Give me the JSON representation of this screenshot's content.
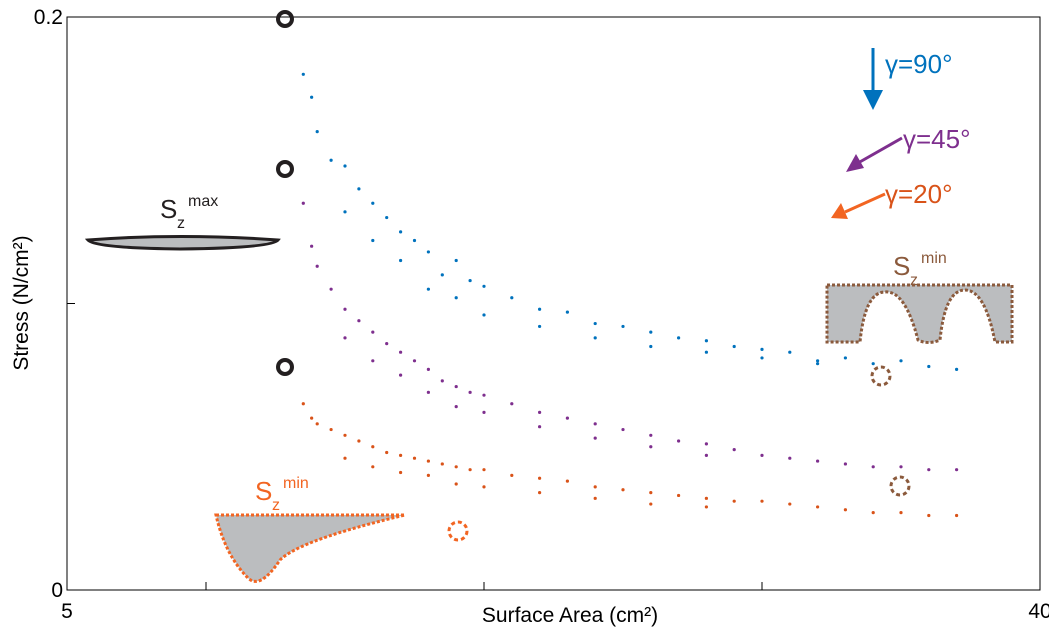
{
  "chart_data": {
    "type": "scatter",
    "xlabel": "Surface Area (cm²)",
    "ylabel": "Stress (N/cm²)",
    "xlim": [
      5,
      40
    ],
    "ylim": [
      0,
      0.2
    ],
    "xticks": [
      5,
      40
    ],
    "xminor": [
      10,
      20,
      30
    ],
    "yticks": [
      0,
      0.2
    ],
    "yminor": [
      0.1
    ],
    "series": [
      {
        "name": "γ=90°",
        "color": "#0072bd",
        "x": [
          13.5,
          13.8,
          14,
          14.5,
          15,
          15.5,
          16,
          16.5,
          17,
          17.5,
          18,
          18.5,
          19,
          19.5,
          20,
          21,
          22,
          23,
          24,
          25,
          26,
          27,
          28,
          29,
          30,
          31,
          32,
          33,
          34,
          35,
          36,
          37,
          15,
          16,
          17,
          18,
          19,
          20,
          22,
          24,
          26,
          28,
          30,
          32
        ],
        "values": [
          0.18,
          0.172,
          0.16,
          0.15,
          0.148,
          0.14,
          0.135,
          0.13,
          0.125,
          0.122,
          0.118,
          0.11,
          0.115,
          0.108,
          0.106,
          0.102,
          0.098,
          0.097,
          0.093,
          0.092,
          0.09,
          0.088,
          0.087,
          0.085,
          0.084,
          0.083,
          0.08,
          0.081,
          0.079,
          0.08,
          0.078,
          0.077,
          0.132,
          0.122,
          0.115,
          0.105,
          0.102,
          0.096,
          0.092,
          0.088,
          0.085,
          0.083,
          0.081,
          0.079
        ]
      },
      {
        "name": "γ=45°",
        "color": "#7e2f8e",
        "x": [
          13.5,
          13.8,
          14,
          14.5,
          15,
          15.5,
          16,
          16.5,
          17,
          17.5,
          18,
          18.5,
          19,
          19.5,
          20,
          21,
          22,
          23,
          24,
          25,
          26,
          27,
          28,
          29,
          30,
          31,
          32,
          33,
          34,
          35,
          36,
          37,
          15,
          16,
          17,
          18,
          19,
          20,
          22,
          24,
          26,
          28
        ],
        "values": [
          0.135,
          0.12,
          0.113,
          0.105,
          0.098,
          0.094,
          0.09,
          0.086,
          0.083,
          0.08,
          0.077,
          0.073,
          0.071,
          0.069,
          0.068,
          0.065,
          0.062,
          0.06,
          0.058,
          0.056,
          0.054,
          0.052,
          0.051,
          0.049,
          0.047,
          0.046,
          0.045,
          0.044,
          0.043,
          0.043,
          0.042,
          0.042,
          0.088,
          0.08,
          0.075,
          0.069,
          0.064,
          0.062,
          0.057,
          0.053,
          0.05,
          0.047
        ]
      },
      {
        "name": "γ=20°",
        "color": "#d95319",
        "x": [
          13.5,
          13.8,
          14,
          14.5,
          15,
          15.5,
          16,
          16.5,
          17,
          17.5,
          18,
          18.5,
          19,
          19.5,
          20,
          21,
          22,
          23,
          24,
          25,
          26,
          27,
          28,
          29,
          30,
          31,
          32,
          33,
          34,
          35,
          36,
          37,
          15,
          16,
          17,
          18,
          19,
          20,
          22,
          24,
          26,
          28
        ],
        "values": [
          0.065,
          0.06,
          0.058,
          0.056,
          0.054,
          0.052,
          0.05,
          0.048,
          0.047,
          0.046,
          0.045,
          0.044,
          0.043,
          0.042,
          0.042,
          0.04,
          0.039,
          0.038,
          0.036,
          0.035,
          0.034,
          0.033,
          0.032,
          0.031,
          0.031,
          0.03,
          0.029,
          0.028,
          0.027,
          0.027,
          0.026,
          0.026,
          0.046,
          0.043,
          0.041,
          0.04,
          0.037,
          0.036,
          0.034,
          0.032,
          0.03,
          0.029
        ]
      }
    ],
    "shape_labels": [
      {
        "base": "S",
        "sub": "z",
        "sup": "max",
        "color": "#231f20"
      },
      {
        "base": "S",
        "sub": "z",
        "sup": "min",
        "color": "#8b5a3c"
      },
      {
        "base": "S",
        "sub": "z",
        "sup": "min",
        "color": "#f26522"
      }
    ]
  }
}
